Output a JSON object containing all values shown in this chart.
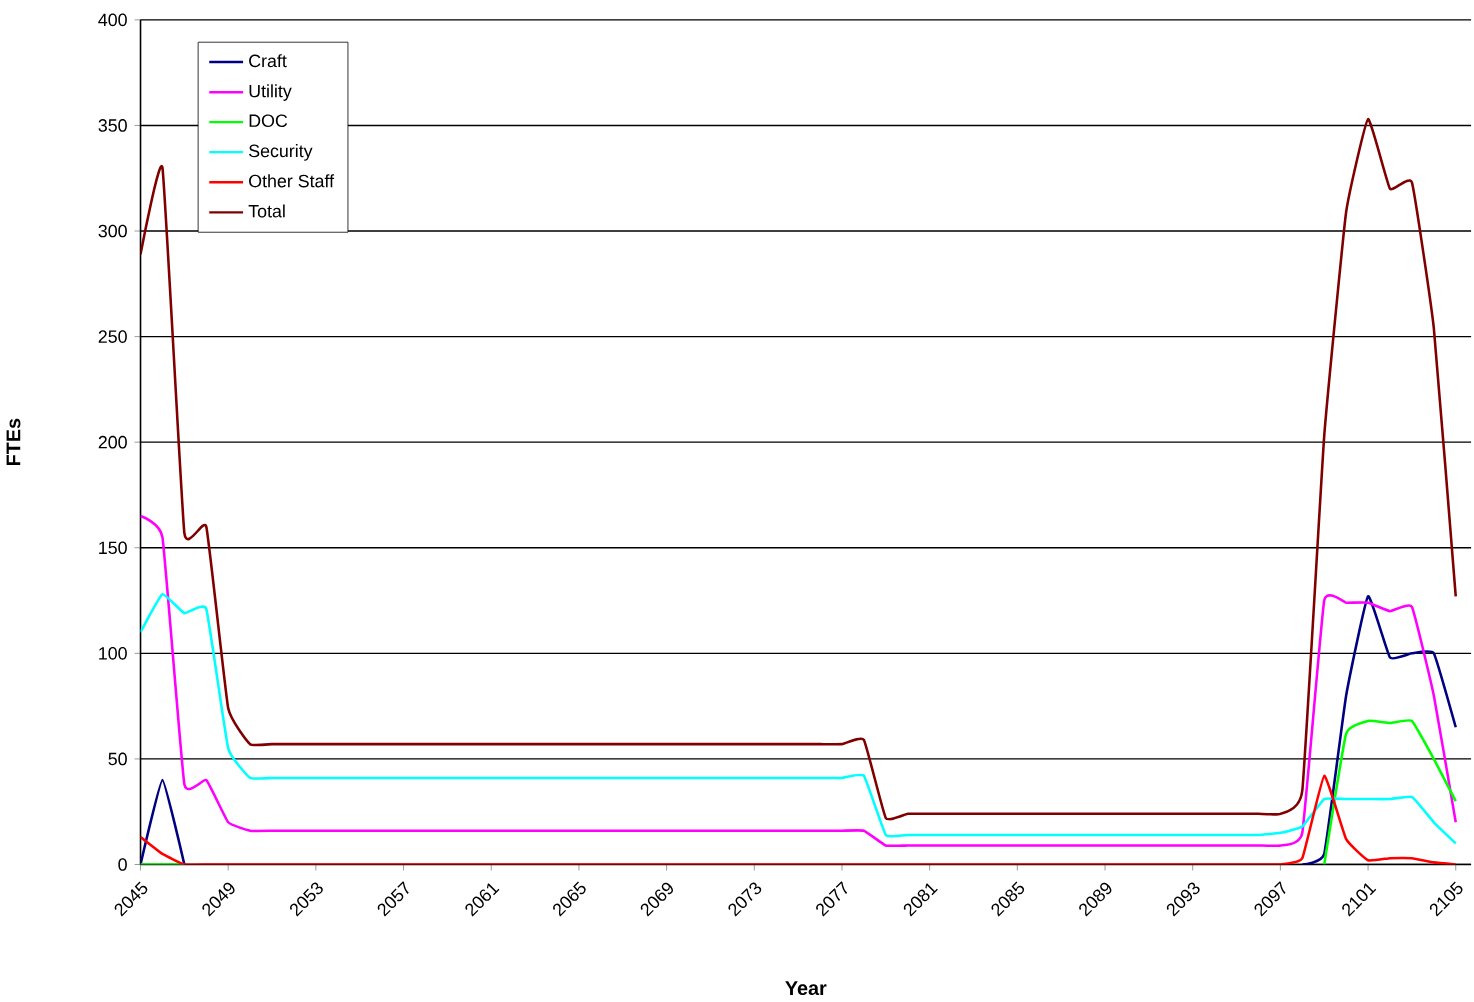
{
  "chart_data": {
    "type": "line",
    "xlabel": "Year",
    "ylabel": "FTEs",
    "x": [
      2045,
      2046,
      2047,
      2048,
      2049,
      2050,
      2051,
      2052,
      2053,
      2054,
      2055,
      2056,
      2057,
      2058,
      2059,
      2060,
      2061,
      2062,
      2063,
      2064,
      2065,
      2066,
      2067,
      2068,
      2069,
      2070,
      2071,
      2072,
      2073,
      2074,
      2075,
      2076,
      2077,
      2078,
      2079,
      2080,
      2081,
      2082,
      2083,
      2084,
      2085,
      2086,
      2087,
      2088,
      2089,
      2090,
      2091,
      2092,
      2093,
      2094,
      2095,
      2096,
      2097,
      2098,
      2099,
      2100,
      2101,
      2102,
      2103,
      2104,
      2105
    ],
    "series": [
      {
        "name": "Craft",
        "color": "#000080",
        "values": [
          0,
          40,
          0,
          null,
          null,
          null,
          null,
          null,
          null,
          null,
          null,
          null,
          null,
          null,
          null,
          null,
          null,
          null,
          null,
          null,
          null,
          null,
          null,
          null,
          null,
          null,
          null,
          null,
          null,
          null,
          null,
          null,
          null,
          null,
          null,
          null,
          null,
          null,
          null,
          null,
          null,
          null,
          null,
          null,
          null,
          null,
          null,
          null,
          null,
          null,
          null,
          null,
          null,
          0,
          5,
          80,
          127,
          98,
          100,
          100,
          65
        ]
      },
      {
        "name": "Utility",
        "color": "#ff00ff",
        "values": [
          165,
          155,
          38,
          40,
          20,
          16,
          16,
          16,
          16,
          16,
          16,
          16,
          16,
          16,
          16,
          16,
          16,
          16,
          16,
          16,
          16,
          16,
          16,
          16,
          16,
          16,
          16,
          16,
          16,
          16,
          16,
          16,
          16,
          16,
          9,
          9,
          9,
          9,
          9,
          9,
          9,
          9,
          9,
          9,
          9,
          9,
          9,
          9,
          9,
          9,
          9,
          9,
          9,
          15,
          125,
          124,
          124,
          120,
          122,
          80,
          20
        ]
      },
      {
        "name": "DOC",
        "color": "#00ff00",
        "values": [
          0,
          0,
          0,
          null,
          null,
          null,
          null,
          null,
          null,
          null,
          null,
          null,
          null,
          null,
          null,
          null,
          null,
          null,
          null,
          null,
          null,
          null,
          null,
          null,
          null,
          null,
          null,
          null,
          null,
          null,
          null,
          null,
          null,
          null,
          null,
          null,
          null,
          null,
          null,
          null,
          null,
          null,
          null,
          null,
          null,
          null,
          null,
          null,
          null,
          null,
          null,
          null,
          null,
          null,
          0,
          62,
          68,
          67,
          68,
          50,
          30
        ]
      },
      {
        "name": "Security",
        "color": "#00ffff",
        "values": [
          110,
          128,
          119,
          121,
          55,
          41,
          41,
          41,
          41,
          41,
          41,
          41,
          41,
          41,
          41,
          41,
          41,
          41,
          41,
          41,
          41,
          41,
          41,
          41,
          41,
          41,
          41,
          41,
          41,
          41,
          41,
          41,
          41,
          42,
          14,
          14,
          14,
          14,
          14,
          14,
          14,
          14,
          14,
          14,
          14,
          14,
          14,
          14,
          14,
          14,
          14,
          14,
          15,
          18,
          31,
          31,
          31,
          31,
          32,
          20,
          10
        ]
      },
      {
        "name": "Other Staff",
        "color": "#ff0000",
        "values": [
          13,
          5,
          0,
          0,
          0,
          0,
          0,
          0,
          0,
          0,
          0,
          0,
          0,
          0,
          0,
          0,
          0,
          0,
          0,
          0,
          0,
          0,
          0,
          0,
          0,
          0,
          0,
          0,
          0,
          0,
          0,
          0,
          0,
          0,
          0,
          0,
          0,
          0,
          0,
          0,
          0,
          0,
          0,
          0,
          0,
          0,
          0,
          0,
          0,
          0,
          0,
          0,
          0,
          3,
          42,
          12,
          2,
          3,
          3,
          1,
          0
        ]
      },
      {
        "name": "Total",
        "color": "#800000",
        "values": [
          289,
          330,
          157,
          160,
          74,
          57,
          57,
          57,
          57,
          57,
          57,
          57,
          57,
          57,
          57,
          57,
          57,
          57,
          57,
          57,
          57,
          57,
          57,
          57,
          57,
          57,
          57,
          57,
          57,
          57,
          57,
          57,
          57,
          59,
          22,
          24,
          24,
          24,
          24,
          24,
          24,
          24,
          24,
          24,
          24,
          24,
          24,
          24,
          24,
          24,
          24,
          24,
          24,
          35,
          203,
          309,
          353,
          320,
          323,
          254,
          127
        ]
      }
    ],
    "xlim": [
      2045,
      2105.7
    ],
    "ylim": [
      0,
      400
    ],
    "xticks": [
      2045,
      2049,
      2053,
      2057,
      2061,
      2065,
      2069,
      2073,
      2077,
      2081,
      2085,
      2089,
      2093,
      2097,
      2101,
      2105
    ],
    "yticks": [
      0,
      50,
      100,
      150,
      200,
      250,
      300,
      350,
      400
    ],
    "grid": "y",
    "legend": "top left",
    "marker": "none",
    "line_style": "solid"
  }
}
